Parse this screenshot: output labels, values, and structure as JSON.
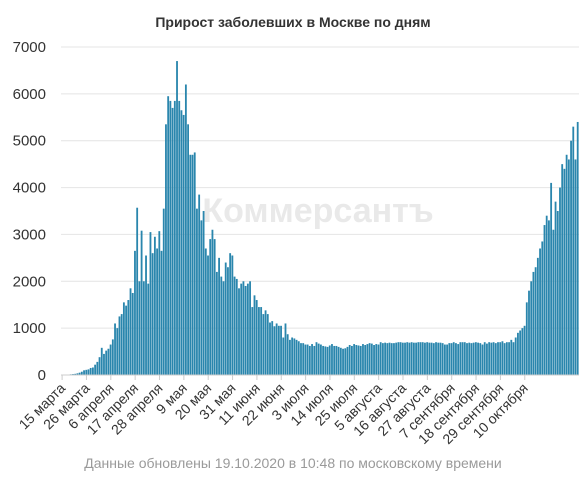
{
  "chart_data": {
    "type": "bar",
    "title": "Прирост заболевших в Москве по дням",
    "xlabel": "",
    "ylabel": "",
    "ylim": [
      0,
      7000
    ],
    "yticks": [
      0,
      1000,
      2000,
      3000,
      4000,
      5000,
      6000,
      7000
    ],
    "grid": true,
    "bar_color": "#2a86ad",
    "x_tick_labels": [
      "15 марта",
      "26 марта",
      "6 апреля",
      "17 апреля",
      "28 апреля",
      "9 мая",
      "20 мая",
      "31 мая",
      "11 июня",
      "22 июня",
      "3 июля",
      "14 июля",
      "25 июля",
      "5 августа",
      "16 августа",
      "27 августа",
      "7 сентября",
      "18 сентября",
      "29 сентября",
      "10 октября"
    ],
    "categories_start": "15 марта",
    "categories_end": "19 октября",
    "values": [
      3,
      2,
      6,
      10,
      15,
      20,
      25,
      35,
      50,
      70,
      100,
      110,
      120,
      150,
      160,
      220,
      280,
      380,
      580,
      450,
      520,
      560,
      650,
      760,
      1100,
      1000,
      1250,
      1300,
      1550,
      1480,
      1600,
      1850,
      1750,
      2650,
      3570,
      2000,
      3080,
      2000,
      2550,
      1950,
      3050,
      2600,
      2950,
      2700,
      3070,
      2650,
      3550,
      5350,
      5950,
      5850,
      5700,
      5850,
      6700,
      5850,
      5650,
      5550,
      6200,
      5350,
      4700,
      4700,
      4750,
      3550,
      3850,
      3300,
      3500,
      2700,
      2550,
      2900,
      3100,
      2900,
      2200,
      2500,
      2100,
      2000,
      2400,
      2300,
      2600,
      2550,
      2100,
      2050,
      1850,
      1950,
      2000,
      1900,
      1950,
      2000,
      1450,
      1700,
      1600,
      1450,
      1450,
      1300,
      1380,
      1300,
      1120,
      1150,
      1040,
      1100,
      1050,
      1050,
      800,
      1100,
      870,
      750,
      800,
      780,
      750,
      720,
      680,
      680,
      650,
      650,
      620,
      660,
      620,
      700,
      670,
      650,
      620,
      610,
      600,
      630,
      660,
      620,
      620,
      600,
      580,
      560,
      570,
      600,
      640,
      620,
      660,
      640,
      630,
      620,
      660,
      640,
      660,
      680,
      670,
      640,
      660,
      650,
      700,
      680,
      690,
      680,
      690,
      680,
      680,
      690,
      700,
      700,
      690,
      690,
      700,
      690,
      700,
      690,
      690,
      700,
      700,
      700,
      690,
      700,
      690,
      690,
      680,
      700,
      690,
      690,
      680,
      650,
      650,
      680,
      680,
      700,
      680,
      660,
      700,
      700,
      700,
      680,
      690,
      680,
      690,
      700,
      690,
      680,
      650,
      700,
      670,
      700,
      690,
      700,
      680,
      700,
      700,
      720,
      680,
      700,
      700,
      750,
      700,
      800,
      900,
      950,
      1000,
      1050,
      1550,
      1800,
      2000,
      2200,
      2300,
      2500,
      2700,
      2850,
      3200,
      3400,
      3300,
      4100,
      3100,
      3700,
      3500,
      4000,
      4500,
      4400,
      4700,
      4600,
      5000,
      5300,
      4600,
      5400
    ]
  },
  "footer": {
    "text": "Данные обновлены 19.10.2020 в 10:48 по московскому времени"
  },
  "watermark": {
    "text": "Коммерсантъ"
  }
}
